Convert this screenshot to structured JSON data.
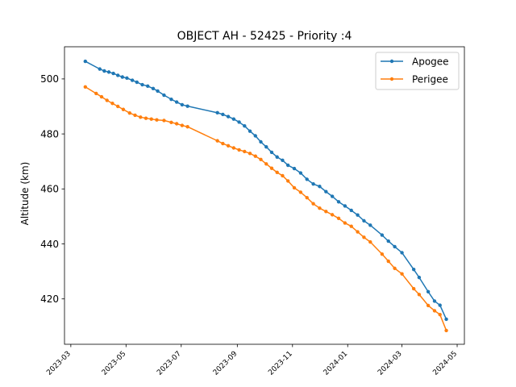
{
  "chart_data": {
    "type": "line",
    "title": "OBJECT AH - 52425 - Priority :4",
    "xlabel": "",
    "ylabel": "Altitude (km)",
    "x_is_date": true,
    "xlim": [
      "2023-02-22",
      "2024-05-09"
    ],
    "ylim": [
      403.5,
      511.7
    ],
    "xticks": [
      "2023-03",
      "2023-05",
      "2023-07",
      "2023-09",
      "2023-11",
      "2024-01",
      "2024-03",
      "2024-05"
    ],
    "xtick_values": [
      "2023-03-01",
      "2023-05-01",
      "2023-07-01",
      "2023-09-01",
      "2023-11-01",
      "2024-01-01",
      "2024-03-01",
      "2024-05-01"
    ],
    "yticks": [
      420,
      440,
      460,
      480,
      500
    ],
    "grid": false,
    "legend": {
      "position": "upper right"
    },
    "series": [
      {
        "name": "Apogee",
        "color": "#1f77b4",
        "marker": "circle",
        "points": [
          [
            "2023-03-17",
            506.4
          ],
          [
            "2023-04-02",
            503.6
          ],
          [
            "2023-04-07",
            502.9
          ],
          [
            "2023-04-12",
            502.5
          ],
          [
            "2023-04-17",
            502.0
          ],
          [
            "2023-04-22",
            501.3
          ],
          [
            "2023-04-27",
            500.7
          ],
          [
            "2023-05-02",
            500.3
          ],
          [
            "2023-05-08",
            499.5
          ],
          [
            "2023-05-13",
            498.8
          ],
          [
            "2023-05-19",
            497.9
          ],
          [
            "2023-05-25",
            497.4
          ],
          [
            "2023-05-31",
            496.5
          ],
          [
            "2023-06-05",
            495.6
          ],
          [
            "2023-06-12",
            494.1
          ],
          [
            "2023-06-20",
            492.6
          ],
          [
            "2023-06-26",
            491.6
          ],
          [
            "2023-07-02",
            490.6
          ],
          [
            "2023-07-08",
            490.1
          ],
          [
            "2023-08-10",
            487.7
          ],
          [
            "2023-08-16",
            487.1
          ],
          [
            "2023-08-22",
            486.3
          ],
          [
            "2023-08-28",
            485.4
          ],
          [
            "2023-09-03",
            484.3
          ],
          [
            "2023-09-09",
            482.9
          ],
          [
            "2023-09-15",
            481.0
          ],
          [
            "2023-09-21",
            479.3
          ],
          [
            "2023-09-27",
            477.1
          ],
          [
            "2023-10-03",
            475.3
          ],
          [
            "2023-10-09",
            473.3
          ],
          [
            "2023-10-15",
            471.6
          ],
          [
            "2023-10-21",
            470.4
          ],
          [
            "2023-10-27",
            468.6
          ],
          [
            "2023-11-03",
            467.4
          ],
          [
            "2023-11-10",
            465.8
          ],
          [
            "2023-11-17",
            463.5
          ],
          [
            "2023-11-24",
            461.8
          ],
          [
            "2023-12-01",
            460.9
          ],
          [
            "2023-12-08",
            459.0
          ],
          [
            "2023-12-15",
            457.3
          ],
          [
            "2023-12-22",
            455.3
          ],
          [
            "2023-12-29",
            453.8
          ],
          [
            "2024-01-05",
            452.2
          ],
          [
            "2024-01-12",
            450.5
          ],
          [
            "2024-01-19",
            448.4
          ],
          [
            "2024-01-26",
            446.8
          ],
          [
            "2024-02-08",
            443.2
          ],
          [
            "2024-02-15",
            441.0
          ],
          [
            "2024-02-22",
            439.0
          ],
          [
            "2024-03-01",
            436.8
          ],
          [
            "2024-03-14",
            430.7
          ],
          [
            "2024-03-20",
            427.8
          ],
          [
            "2024-03-30",
            422.6
          ],
          [
            "2024-04-06",
            419.2
          ],
          [
            "2024-04-12",
            417.7
          ],
          [
            "2024-04-19",
            412.6
          ]
        ]
      },
      {
        "name": "Perigee",
        "color": "#ff7f0e",
        "marker": "circle",
        "points": [
          [
            "2023-03-17",
            497.1
          ],
          [
            "2023-03-29",
            494.7
          ],
          [
            "2023-04-04",
            493.5
          ],
          [
            "2023-04-10",
            492.2
          ],
          [
            "2023-04-16",
            491.1
          ],
          [
            "2023-04-22",
            490.0
          ],
          [
            "2023-04-28",
            488.9
          ],
          [
            "2023-05-05",
            487.6
          ],
          [
            "2023-05-11",
            486.8
          ],
          [
            "2023-05-17",
            486.1
          ],
          [
            "2023-05-23",
            485.7
          ],
          [
            "2023-05-29",
            485.4
          ],
          [
            "2023-06-04",
            485.1
          ],
          [
            "2023-06-12",
            484.9
          ],
          [
            "2023-06-20",
            484.2
          ],
          [
            "2023-06-26",
            483.7
          ],
          [
            "2023-07-02",
            483.1
          ],
          [
            "2023-07-08",
            482.6
          ],
          [
            "2023-08-10",
            477.5
          ],
          [
            "2023-08-16",
            476.5
          ],
          [
            "2023-08-22",
            475.7
          ],
          [
            "2023-08-28",
            474.9
          ],
          [
            "2023-09-03",
            474.2
          ],
          [
            "2023-09-09",
            473.6
          ],
          [
            "2023-09-15",
            472.9
          ],
          [
            "2023-09-21",
            471.9
          ],
          [
            "2023-09-27",
            470.7
          ],
          [
            "2023-10-03",
            469.1
          ],
          [
            "2023-10-09",
            467.5
          ],
          [
            "2023-10-15",
            466.0
          ],
          [
            "2023-10-21",
            464.8
          ],
          [
            "2023-10-27",
            462.9
          ],
          [
            "2023-11-03",
            460.4
          ],
          [
            "2023-11-10",
            458.8
          ],
          [
            "2023-11-17",
            456.8
          ],
          [
            "2023-11-24",
            454.6
          ],
          [
            "2023-12-01",
            453.0
          ],
          [
            "2023-12-08",
            451.8
          ],
          [
            "2023-12-15",
            450.6
          ],
          [
            "2023-12-22",
            449.3
          ],
          [
            "2023-12-29",
            447.6
          ],
          [
            "2024-01-05",
            446.4
          ],
          [
            "2024-01-12",
            444.4
          ],
          [
            "2024-01-19",
            442.4
          ],
          [
            "2024-01-26",
            440.7
          ],
          [
            "2024-02-08",
            436.3
          ],
          [
            "2024-02-15",
            433.7
          ],
          [
            "2024-02-22",
            431.1
          ],
          [
            "2024-03-01",
            429.1
          ],
          [
            "2024-03-14",
            423.7
          ],
          [
            "2024-03-20",
            421.6
          ],
          [
            "2024-03-30",
            417.6
          ],
          [
            "2024-04-06",
            415.7
          ],
          [
            "2024-04-12",
            414.3
          ],
          [
            "2024-04-19",
            408.5
          ]
        ]
      }
    ]
  }
}
